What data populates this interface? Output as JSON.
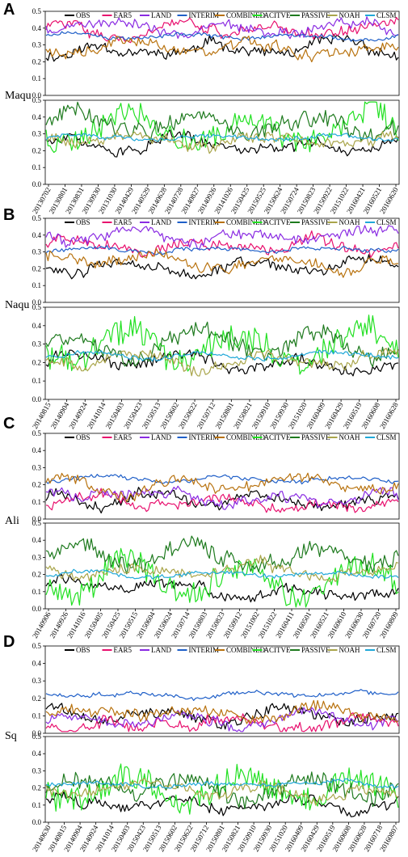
{
  "chart_data": {
    "type": "line",
    "series_styles": [
      {
        "name": "OBS",
        "color": "#000000"
      },
      {
        "name": "EAR5",
        "color": "#e8106e"
      },
      {
        "name": "LAND",
        "color": "#8a2be2"
      },
      {
        "name": "INTERIM",
        "color": "#1f5fc8"
      },
      {
        "name": "COMBINED",
        "color": "#b8720e"
      },
      {
        "name": "ACITVE",
        "color": "#22e022"
      },
      {
        "name": "PASSIVE",
        "color": "#1e7a1e"
      },
      {
        "name": "NOAH",
        "color": "#a9a54a"
      },
      {
        "name": "CLSM",
        "color": "#20a8d8"
      }
    ],
    "panels": [
      {
        "letter": "A",
        "site": "Maqu",
        "ylim": [
          0,
          0.5
        ],
        "yticks": [
          "0.0",
          "0.1",
          "0.2",
          "0.3",
          "0.4",
          "0.5"
        ],
        "xticks": [
          "20130702",
          "20130801",
          "20130831",
          "20130930",
          "20131030",
          "20140429",
          "20140529",
          "20140628",
          "20140728",
          "20140827",
          "20140926",
          "20141026",
          "20150425",
          "20150525",
          "20150624",
          "20150724",
          "20150823",
          "20150922",
          "20151022",
          "20160421",
          "20160521",
          "20160620"
        ],
        "levels_top": {
          "OBS": 0.27,
          "EAR5": 0.39,
          "LAND": 0.42,
          "INTERIM": 0.35,
          "COMBINED": 0.28
        },
        "levels_bottom": {
          "OBS": 0.23,
          "ACITVE": 0.33,
          "PASSIVE": 0.36,
          "NOAH": 0.26,
          "CLSM": 0.28
        }
      },
      {
        "letter": "B",
        "site": "Naqu",
        "ylim": [
          0,
          0.5
        ],
        "yticks": [
          "0.0",
          "0.1",
          "0.2",
          "0.3",
          "0.4",
          "0.5"
        ],
        "xticks": [
          "20140815",
          "20140904",
          "20140924",
          "20141014",
          "20150403",
          "20150423",
          "20150513",
          "20150602",
          "20150622",
          "20150712",
          "20150801",
          "20150821",
          "20150910",
          "20150930",
          "20151020",
          "20160409",
          "20160429",
          "20160519",
          "20160608",
          "20160628"
        ],
        "levels_top": {
          "OBS": 0.21,
          "EAR5": 0.35,
          "LAND": 0.39,
          "INTERIM": 0.31,
          "COMBINED": 0.25
        },
        "levels_bottom": {
          "OBS": 0.19,
          "ACITVE": 0.27,
          "PASSIVE": 0.29,
          "NOAH": 0.2,
          "CLSM": 0.24
        }
      },
      {
        "letter": "C",
        "site": "Ali",
        "ylim": [
          0,
          0.5
        ],
        "yticks": [
          "0.0",
          "0.1",
          "0.2",
          "0.3",
          "0.4",
          "0.5"
        ],
        "xticks": [
          "20140906",
          "20140926",
          "20141016",
          "20150405",
          "20150425",
          "20150515",
          "20150604",
          "20150624",
          "20150714",
          "20150803",
          "20150823",
          "20150912",
          "20151002",
          "20151022",
          "20160411",
          "20160501",
          "20160521",
          "20160610",
          "20160630",
          "20160720",
          "20160809"
        ],
        "levels_top": {
          "OBS": 0.11,
          "EAR5": 0.09,
          "LAND": 0.12,
          "INTERIM": 0.23,
          "COMBINED": 0.2
        },
        "levels_bottom": {
          "OBS": 0.12,
          "ACITVE": 0.17,
          "PASSIVE": 0.3,
          "NOAH": 0.22,
          "CLSM": 0.2
        }
      },
      {
        "letter": "D",
        "site": "Sq",
        "ylim": [
          0,
          0.5
        ],
        "yticks": [
          "0.0",
          "0.1",
          "0.2",
          "0.3",
          "0.4",
          "0.5"
        ],
        "xticks": [
          "20140630",
          "20140815",
          "20140904",
          "20140924",
          "20141014",
          "20150403",
          "20150423",
          "20150513",
          "20150602",
          "20150622",
          "20150712",
          "20150801",
          "20150821",
          "20150910",
          "20150930",
          "20151020",
          "20160409",
          "20160429",
          "20160519",
          "20160608",
          "20160628",
          "20160718",
          "20160807"
        ],
        "levels_top": {
          "OBS": 0.11,
          "EAR5": 0.06,
          "LAND": 0.07,
          "INTERIM": 0.22,
          "COMBINED": 0.12
        },
        "levels_bottom": {
          "OBS": 0.11,
          "ACITVE": 0.2,
          "PASSIVE": 0.2,
          "NOAH": 0.18,
          "CLSM": 0.22
        }
      }
    ]
  }
}
